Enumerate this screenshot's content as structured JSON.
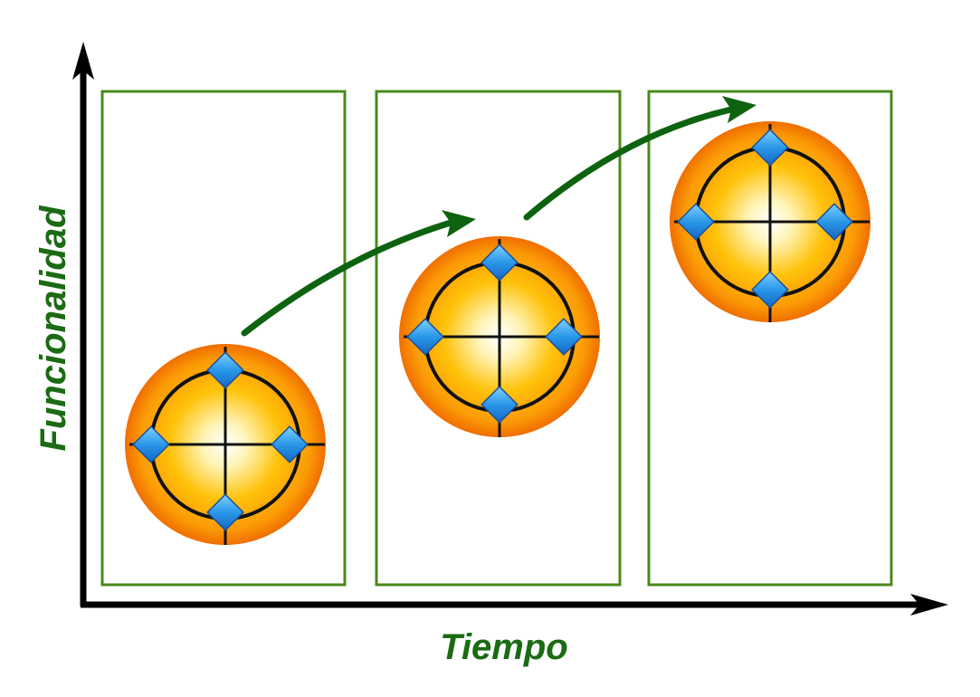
{
  "diagram": {
    "y_axis_label": "Funcionalidad",
    "x_axis_label": "Tiempo",
    "stages": [
      {
        "level": 1
      },
      {
        "level": 2
      },
      {
        "level": 3
      }
    ],
    "colors": {
      "axis": "#000000",
      "label": "#1a6b12",
      "frame": "#4a8a1c",
      "arrow": "#0d6310",
      "orb_outer": "#f27a00",
      "orb_mid": "#ffc20a",
      "orb_center": "#ffffff",
      "diamond": "#2a97e8"
    }
  }
}
